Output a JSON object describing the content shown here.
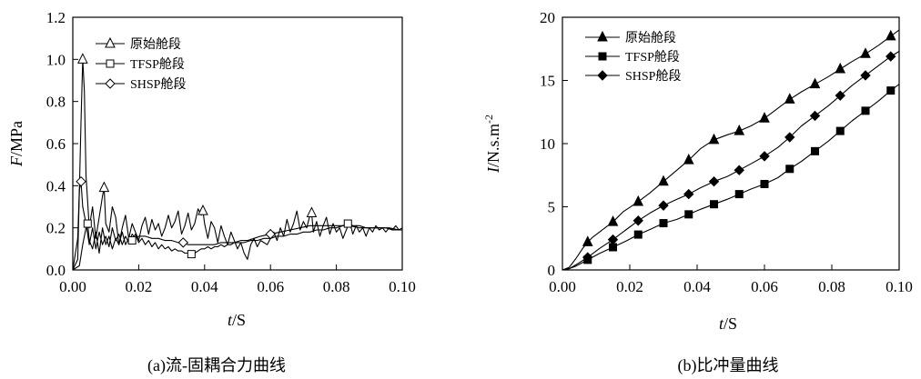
{
  "chart_data": [
    {
      "type": "line",
      "xlabel_italic": "t",
      "xlabel_unit": "/S",
      "ylabel_italic": "F",
      "ylabel_unit": "/MPa",
      "xlim": [
        0,
        0.1
      ],
      "ylim": [
        0,
        1.2
      ],
      "xticks": [
        "0.00",
        "0.02",
        "0.04",
        "0.06",
        "0.08",
        "0.10"
      ],
      "yticks": [
        "0.0",
        "0.2",
        "0.4",
        "0.6",
        "0.8",
        "1.0",
        "1.2"
      ],
      "legend_position": "top-left",
      "caption": "(a)流-固耦合力曲线",
      "series": [
        {
          "name": "原始舱段",
          "marker": "triangle-open",
          "marker_x": [
            0.003,
            0.0095,
            0.0395,
            0.0725
          ],
          "x": [
            0,
            0.0015,
            0.0025,
            0.003,
            0.0035,
            0.004,
            0.005,
            0.006,
            0.007,
            0.008,
            0.009,
            0.0095,
            0.01,
            0.011,
            0.012,
            0.013,
            0.014,
            0.015,
            0.016,
            0.017,
            0.018,
            0.019,
            0.02,
            0.021,
            0.022,
            0.023,
            0.024,
            0.025,
            0.026,
            0.027,
            0.028,
            0.029,
            0.03,
            0.031,
            0.032,
            0.033,
            0.034,
            0.035,
            0.036,
            0.037,
            0.038,
            0.039,
            0.0395,
            0.04,
            0.041,
            0.042,
            0.043,
            0.044,
            0.045,
            0.046,
            0.047,
            0.048,
            0.049,
            0.05,
            0.051,
            0.052,
            0.053,
            0.054,
            0.055,
            0.056,
            0.057,
            0.058,
            0.059,
            0.06,
            0.061,
            0.062,
            0.063,
            0.064,
            0.065,
            0.066,
            0.067,
            0.068,
            0.069,
            0.07,
            0.071,
            0.072,
            0.0725,
            0.073,
            0.074,
            0.075,
            0.076,
            0.077,
            0.078,
            0.079,
            0.08,
            0.081,
            0.082,
            0.083,
            0.084,
            0.085,
            0.086,
            0.087,
            0.088,
            0.089,
            0.09,
            0.091,
            0.092,
            0.093,
            0.094,
            0.095,
            0.096,
            0.097,
            0.098,
            0.099,
            0.1
          ],
          "y": [
            0,
            0.05,
            0.7,
            1.0,
            0.85,
            0.45,
            0.2,
            0.3,
            0.15,
            0.25,
            0.35,
            0.39,
            0.22,
            0.18,
            0.3,
            0.25,
            0.12,
            0.2,
            0.26,
            0.15,
            0.22,
            0.18,
            0.14,
            0.21,
            0.25,
            0.17,
            0.24,
            0.19,
            0.22,
            0.16,
            0.2,
            0.26,
            0.2,
            0.23,
            0.28,
            0.17,
            0.21,
            0.27,
            0.19,
            0.22,
            0.29,
            0.26,
            0.28,
            0.22,
            0.15,
            0.23,
            0.2,
            0.13,
            0.21,
            0.16,
            0.12,
            0.18,
            0.14,
            0.1,
            0.13,
            0.08,
            0.05,
            0.12,
            0.15,
            0.11,
            0.14,
            0.13,
            0.12,
            0.15,
            0.18,
            0.14,
            0.2,
            0.16,
            0.24,
            0.18,
            0.22,
            0.28,
            0.19,
            0.23,
            0.2,
            0.26,
            0.27,
            0.18,
            0.23,
            0.16,
            0.21,
            0.25,
            0.17,
            0.22,
            0.18,
            0.2,
            0.15,
            0.19,
            0.23,
            0.17,
            0.21,
            0.18,
            0.2,
            0.16,
            0.2,
            0.18,
            0.21,
            0.19,
            0.2,
            0.18,
            0.2,
            0.19,
            0.21,
            0.19,
            0.2
          ]
        },
        {
          "name": "TFSP舱段",
          "marker": "square-open",
          "marker_x": [
            0.0045,
            0.018,
            0.036,
            0.0835
          ],
          "x": [
            0,
            0.002,
            0.003,
            0.004,
            0.0045,
            0.005,
            0.006,
            0.007,
            0.008,
            0.009,
            0.01,
            0.011,
            0.012,
            0.013,
            0.014,
            0.015,
            0.016,
            0.017,
            0.018,
            0.019,
            0.02,
            0.021,
            0.022,
            0.023,
            0.024,
            0.025,
            0.026,
            0.027,
            0.028,
            0.029,
            0.03,
            0.031,
            0.032,
            0.033,
            0.034,
            0.035,
            0.036,
            0.037,
            0.038,
            0.039,
            0.04,
            0.041,
            0.042,
            0.043,
            0.044,
            0.045,
            0.046,
            0.047,
            0.048,
            0.049,
            0.05,
            0.052,
            0.054,
            0.056,
            0.058,
            0.06,
            0.062,
            0.064,
            0.066,
            0.068,
            0.07,
            0.072,
            0.074,
            0.076,
            0.078,
            0.08,
            0.082,
            0.0835,
            0.085,
            0.087,
            0.089,
            0.091,
            0.093,
            0.095,
            0.097,
            0.099,
            0.1
          ],
          "y": [
            0,
            0.02,
            0.12,
            0.2,
            0.22,
            0.14,
            0.1,
            0.18,
            0.08,
            0.2,
            0.12,
            0.16,
            0.1,
            0.15,
            0.12,
            0.18,
            0.12,
            0.15,
            0.14,
            0.17,
            0.13,
            0.15,
            0.12,
            0.14,
            0.11,
            0.13,
            0.1,
            0.12,
            0.1,
            0.11,
            0.09,
            0.1,
            0.09,
            0.09,
            0.08,
            0.08,
            0.075,
            0.08,
            0.09,
            0.1,
            0.1,
            0.11,
            0.1,
            0.11,
            0.11,
            0.12,
            0.11,
            0.12,
            0.12,
            0.13,
            0.13,
            0.13,
            0.14,
            0.14,
            0.15,
            0.15,
            0.16,
            0.16,
            0.17,
            0.17,
            0.18,
            0.18,
            0.19,
            0.19,
            0.2,
            0.2,
            0.21,
            0.22,
            0.21,
            0.21,
            0.2,
            0.2,
            0.2,
            0.2,
            0.19,
            0.19,
            0.19
          ]
        },
        {
          "name": "SHSP舱段",
          "marker": "diamond-open",
          "marker_x": [
            0.0025,
            0.0335,
            0.06
          ],
          "x": [
            0,
            0.0015,
            0.002,
            0.0025,
            0.003,
            0.004,
            0.005,
            0.006,
            0.007,
            0.008,
            0.009,
            0.01,
            0.011,
            0.012,
            0.013,
            0.014,
            0.015,
            0.016,
            0.017,
            0.018,
            0.019,
            0.02,
            0.022,
            0.024,
            0.026,
            0.028,
            0.03,
            0.032,
            0.0335,
            0.035,
            0.037,
            0.039,
            0.041,
            0.043,
            0.045,
            0.047,
            0.049,
            0.051,
            0.053,
            0.055,
            0.057,
            0.06,
            0.063,
            0.066,
            0.069,
            0.072,
            0.075,
            0.078,
            0.081,
            0.084,
            0.087,
            0.09,
            0.093,
            0.096,
            0.099,
            0.1
          ],
          "y": [
            0,
            0.15,
            0.38,
            0.42,
            0.3,
            0.22,
            0.12,
            0.2,
            0.1,
            0.18,
            0.12,
            0.16,
            0.11,
            0.2,
            0.14,
            0.17,
            0.12,
            0.16,
            0.13,
            0.17,
            0.15,
            0.16,
            0.16,
            0.15,
            0.15,
            0.14,
            0.14,
            0.13,
            0.13,
            0.12,
            0.12,
            0.12,
            0.12,
            0.12,
            0.13,
            0.13,
            0.13,
            0.14,
            0.14,
            0.15,
            0.16,
            0.17,
            0.18,
            0.19,
            0.2,
            0.21,
            0.21,
            0.21,
            0.21,
            0.21,
            0.2,
            0.2,
            0.2,
            0.2,
            0.19,
            0.19
          ]
        }
      ]
    },
    {
      "type": "line",
      "xlabel_italic": "t",
      "xlabel_unit": "/S",
      "ylabel_italic": "I",
      "ylabel_unit": "/N.s.m",
      "ylabel_sup": "-2",
      "xlim": [
        0,
        0.1
      ],
      "ylim": [
        0,
        20
      ],
      "xticks": [
        "0.00",
        "0.02",
        "0.04",
        "0.06",
        "0.08",
        "0.10"
      ],
      "yticks": [
        "0",
        "5",
        "10",
        "15",
        "20"
      ],
      "legend_position": "top-left",
      "caption": "(b)比冲量曲线",
      "series": [
        {
          "name": "原始舱段",
          "marker": "triangle-filled",
          "marker_x": [
            0.0075,
            0.015,
            0.0225,
            0.03,
            0.0375,
            0.045,
            0.0525,
            0.06,
            0.0675,
            0.075,
            0.0825,
            0.09,
            0.0975
          ],
          "x": [
            0,
            0.002,
            0.004,
            0.006,
            0.0075,
            0.009,
            0.011,
            0.013,
            0.015,
            0.018,
            0.0225,
            0.026,
            0.03,
            0.034,
            0.0375,
            0.041,
            0.045,
            0.049,
            0.0525,
            0.056,
            0.06,
            0.064,
            0.0675,
            0.071,
            0.075,
            0.079,
            0.0825,
            0.086,
            0.09,
            0.094,
            0.0975,
            0.1
          ],
          "y": [
            0,
            0.2,
            0.9,
            1.7,
            2.2,
            2.6,
            3.0,
            3.4,
            3.8,
            4.6,
            5.4,
            6.1,
            7.0,
            7.9,
            8.7,
            9.6,
            10.3,
            10.7,
            11.0,
            11.4,
            12.0,
            12.8,
            13.5,
            14.1,
            14.7,
            15.3,
            15.9,
            16.5,
            17.1,
            17.8,
            18.5,
            19.0
          ]
        },
        {
          "name": "TFSP舱段",
          "marker": "square-filled",
          "marker_x": [
            0.0075,
            0.015,
            0.0225,
            0.03,
            0.0375,
            0.045,
            0.0525,
            0.06,
            0.0675,
            0.075,
            0.0825,
            0.09,
            0.0975
          ],
          "x": [
            0,
            0.002,
            0.004,
            0.0075,
            0.011,
            0.015,
            0.019,
            0.0225,
            0.026,
            0.03,
            0.034,
            0.0375,
            0.041,
            0.045,
            0.049,
            0.0525,
            0.056,
            0.06,
            0.064,
            0.0675,
            0.071,
            0.075,
            0.079,
            0.0825,
            0.086,
            0.09,
            0.094,
            0.0975,
            0.1
          ],
          "y": [
            0,
            0.1,
            0.3,
            0.8,
            1.3,
            1.8,
            2.3,
            2.8,
            3.2,
            3.7,
            4.0,
            4.4,
            4.8,
            5.2,
            5.6,
            6.0,
            6.4,
            6.8,
            7.3,
            8.0,
            8.6,
            9.4,
            10.2,
            11.0,
            11.8,
            12.6,
            13.4,
            14.2,
            14.7
          ]
        },
        {
          "name": "SHSP舱段",
          "marker": "diamond-filled",
          "marker_x": [
            0.0075,
            0.015,
            0.0225,
            0.03,
            0.0375,
            0.045,
            0.0525,
            0.06,
            0.0675,
            0.075,
            0.0825,
            0.09,
            0.0975
          ],
          "x": [
            0,
            0.002,
            0.004,
            0.0075,
            0.011,
            0.015,
            0.019,
            0.0225,
            0.026,
            0.03,
            0.034,
            0.0375,
            0.041,
            0.045,
            0.049,
            0.0525,
            0.056,
            0.06,
            0.064,
            0.0675,
            0.071,
            0.075,
            0.079,
            0.0825,
            0.086,
            0.09,
            0.094,
            0.0975,
            0.1
          ],
          "y": [
            0,
            0.1,
            0.4,
            1.0,
            1.7,
            2.4,
            3.2,
            3.9,
            4.5,
            5.1,
            5.6,
            6.0,
            6.5,
            7.0,
            7.4,
            7.9,
            8.4,
            9.0,
            9.7,
            10.5,
            11.4,
            12.2,
            13.0,
            13.8,
            14.6,
            15.4,
            16.2,
            16.9,
            17.3
          ]
        }
      ]
    }
  ]
}
